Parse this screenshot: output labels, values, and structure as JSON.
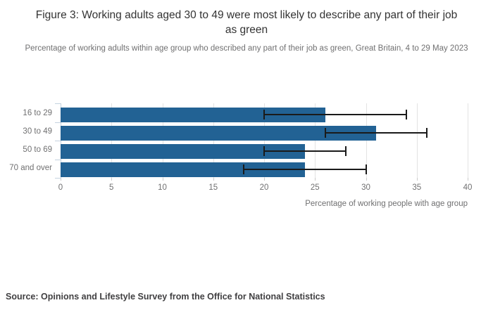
{
  "chart_data": {
    "type": "bar",
    "orientation": "horizontal",
    "title": "Figure 3: Working adults aged 30 to 49 were most likely to describe any part of their job as green",
    "subtitle": "Percentage of working adults within age group who described any part of their job as green, Great Britain, 4 to 29 May 2023",
    "categories": [
      "16 to 29",
      "30 to 49",
      "50 to 69",
      "70 and over"
    ],
    "values": [
      26,
      31,
      24,
      24
    ],
    "error_low": [
      20,
      26,
      20,
      18
    ],
    "error_high": [
      34,
      36,
      28,
      30
    ],
    "xlabel": "Percentage of working people with age group",
    "xticks": [
      0,
      5,
      10,
      15,
      20,
      25,
      30,
      35,
      40
    ],
    "xlim": [
      0,
      40
    ],
    "grid": true,
    "legend": "none",
    "bar_color": "#226294",
    "error_bar_color": "#1a1a1a"
  },
  "source": "Source: Opinions and Lifestyle Survey from the Office for National Statistics"
}
